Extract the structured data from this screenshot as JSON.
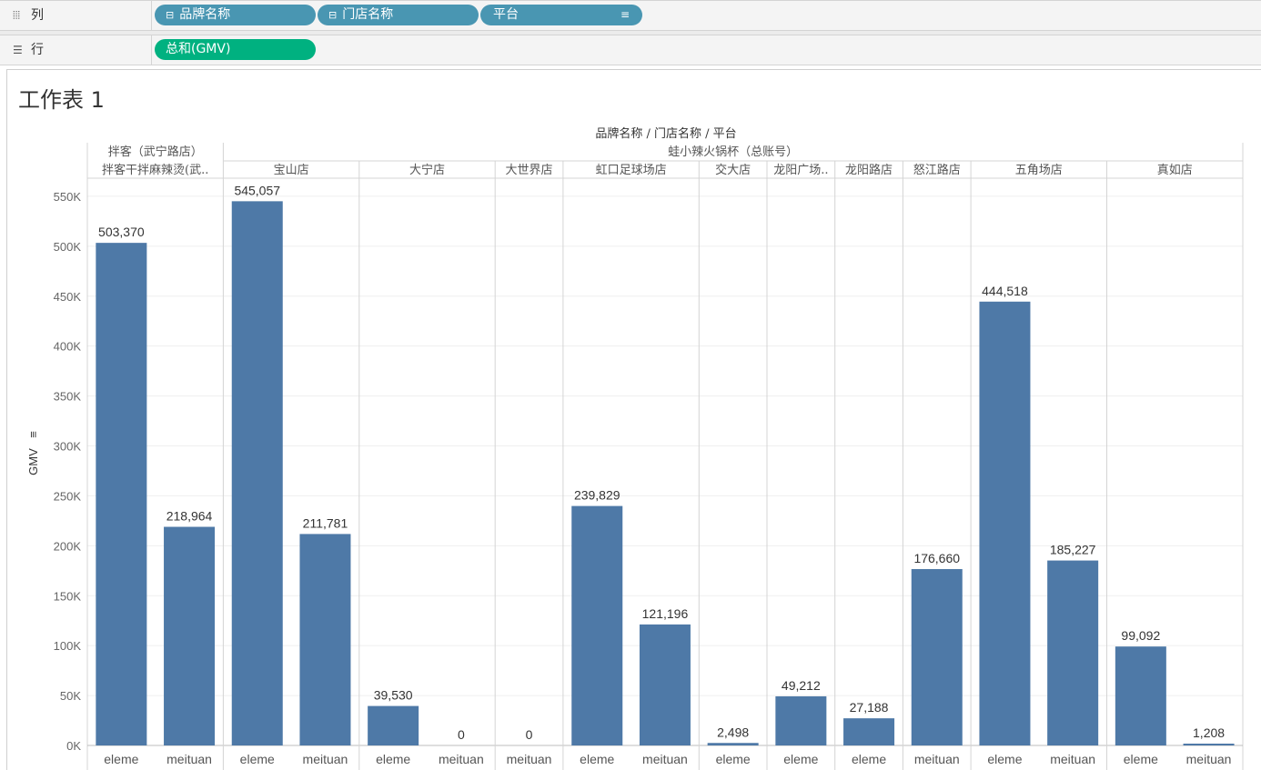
{
  "shelves": {
    "columns": {
      "label": "列",
      "icon": "columns-icon",
      "pills": [
        {
          "text": "品牌名称",
          "type": "dimension",
          "icon": "collapse-icon"
        },
        {
          "text": "门店名称",
          "type": "dimension",
          "icon": "collapse-icon"
        },
        {
          "text": "平台",
          "type": "dimension",
          "icon": "sort-icon"
        }
      ]
    },
    "rows": {
      "label": "行",
      "icon": "rows-icon",
      "pills": [
        {
          "text": "总和(GMV)",
          "type": "measure"
        }
      ]
    }
  },
  "sheet": {
    "title": "工作表 1",
    "header_title": "品牌名称 / 门店名称 / 平台",
    "colors": {
      "bar": "#4e79a7",
      "dimension_pill": "#4996b2",
      "measure_pill": "#00b180"
    }
  },
  "chart_data": {
    "type": "bar",
    "title": "",
    "ylabel": "GMV",
    "ylim": [
      0,
      590000
    ],
    "yticks": [
      "0K",
      "50K",
      "100K",
      "150K",
      "200K",
      "250K",
      "300K",
      "350K",
      "400K",
      "450K",
      "500K",
      "550K"
    ],
    "brands": [
      {
        "name": "拌客（武宁路店）",
        "stores": [
          "拌客干拌麻辣烫(武.."
        ]
      },
      {
        "name": "蛙小辣火锅杯（总账号）",
        "stores": [
          "宝山店",
          "大宁店",
          "大世界店",
          "虹口足球场店",
          "交大店",
          "龙阳广场..",
          "龙阳路店",
          "怒江路店",
          "五角场店",
          "真如店"
        ]
      }
    ],
    "bars": [
      {
        "brand": "拌客（武宁路店）",
        "store": "拌客干拌麻辣烫(武..",
        "platform": "eleme",
        "value": 503370,
        "label": "503,370"
      },
      {
        "brand": "拌客（武宁路店）",
        "store": "拌客干拌麻辣烫(武..",
        "platform": "meituan",
        "value": 218964,
        "label": "218,964"
      },
      {
        "brand": "蛙小辣火锅杯（总账号）",
        "store": "宝山店",
        "platform": "eleme",
        "value": 545057,
        "label": "545,057"
      },
      {
        "brand": "蛙小辣火锅杯（总账号）",
        "store": "宝山店",
        "platform": "meituan",
        "value": 211781,
        "label": "211,781"
      },
      {
        "brand": "蛙小辣火锅杯（总账号）",
        "store": "大宁店",
        "platform": "eleme",
        "value": 39530,
        "label": "39,530"
      },
      {
        "brand": "蛙小辣火锅杯（总账号）",
        "store": "大宁店",
        "platform": "meituan",
        "value": 0,
        "label": "0"
      },
      {
        "brand": "蛙小辣火锅杯（总账号）",
        "store": "大世界店",
        "platform": "meituan",
        "value": 0,
        "label": "0"
      },
      {
        "brand": "蛙小辣火锅杯（总账号）",
        "store": "虹口足球场店",
        "platform": "eleme",
        "value": 239829,
        "label": "239,829"
      },
      {
        "brand": "蛙小辣火锅杯（总账号）",
        "store": "虹口足球场店",
        "platform": "meituan",
        "value": 121196,
        "label": "121,196"
      },
      {
        "brand": "蛙小辣火锅杯（总账号）",
        "store": "交大店",
        "platform": "eleme",
        "value": 2498,
        "label": "2,498"
      },
      {
        "brand": "蛙小辣火锅杯（总账号）",
        "store": "龙阳广场..",
        "platform": "eleme",
        "value": 49212,
        "label": "49,212"
      },
      {
        "brand": "蛙小辣火锅杯（总账号）",
        "store": "龙阳路店",
        "platform": "eleme",
        "value": 27188,
        "label": "27,188"
      },
      {
        "brand": "蛙小辣火锅杯（总账号）",
        "store": "怒江路店",
        "platform": "meituan",
        "value": 176660,
        "label": "176,660"
      },
      {
        "brand": "蛙小辣火锅杯（总账号）",
        "store": "五角场店",
        "platform": "eleme",
        "value": 444518,
        "label": "444,518"
      },
      {
        "brand": "蛙小辣火锅杯（总账号）",
        "store": "五角场店",
        "platform": "meituan",
        "value": 185227,
        "label": "185,227"
      },
      {
        "brand": "蛙小辣火锅杯（总账号）",
        "store": "真如店",
        "platform": "eleme",
        "value": 99092,
        "label": "99,092"
      },
      {
        "brand": "蛙小辣火锅杯（总账号）",
        "store": "真如店",
        "platform": "meituan",
        "value": 1208,
        "label": "1,208"
      }
    ],
    "grid": true,
    "legend": "none"
  }
}
